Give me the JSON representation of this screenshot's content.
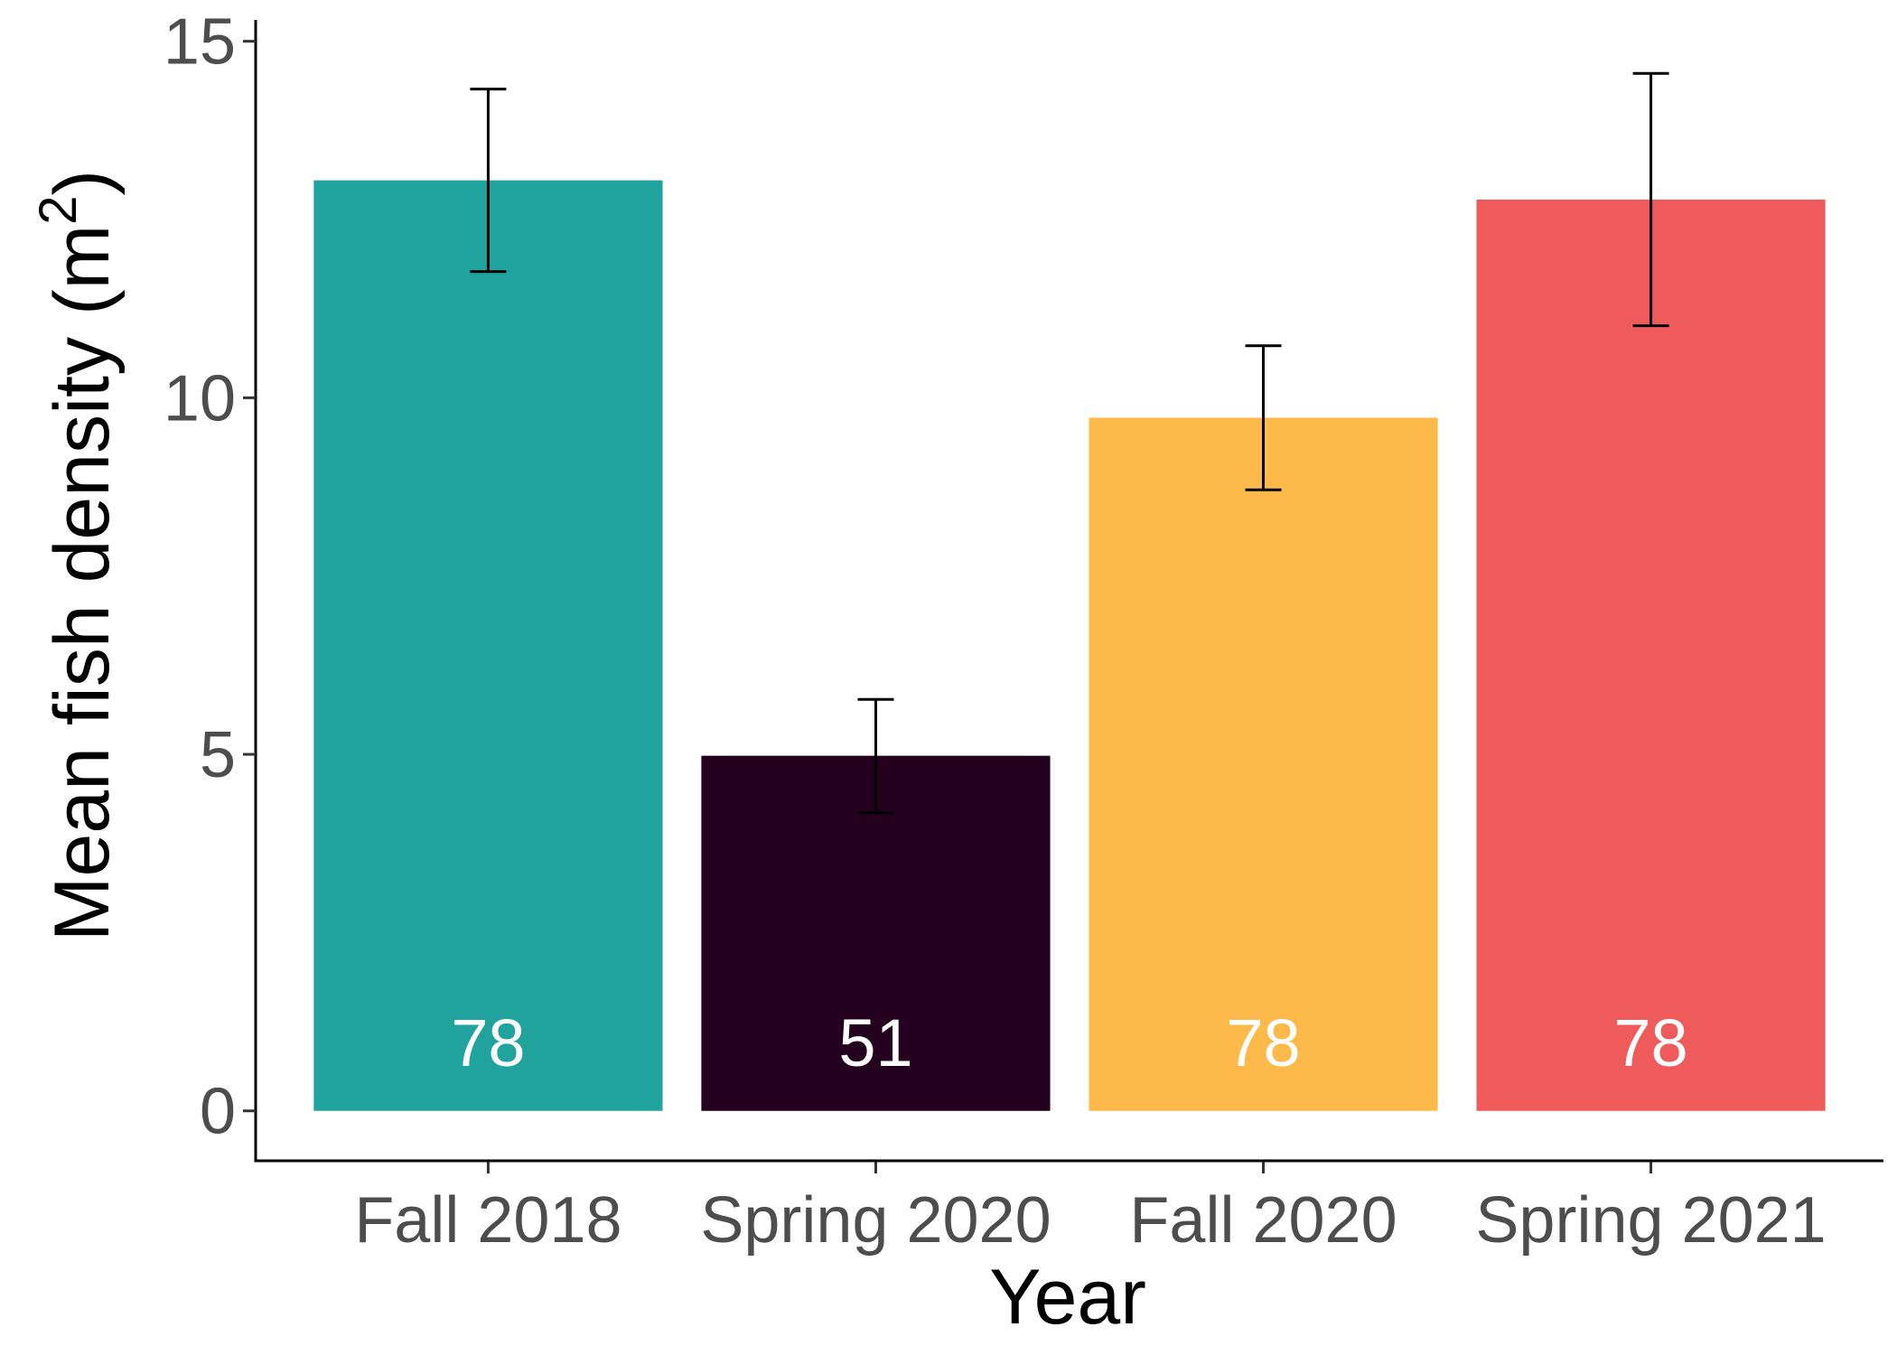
{
  "chart_data": {
    "type": "bar",
    "categories": [
      "Fall 2018",
      "Spring 2020",
      "Fall 2020",
      "Spring 2021"
    ],
    "values": [
      13.05,
      4.98,
      9.72,
      12.78
    ],
    "error_upper": [
      14.33,
      5.77,
      10.73,
      14.55
    ],
    "error_lower": [
      11.77,
      4.18,
      8.71,
      11.01
    ],
    "bar_labels": [
      "78",
      "51",
      "78",
      "78"
    ],
    "colors": [
      "#21a39d",
      "#24001e",
      "#fdb94a",
      "#ef5b5b"
    ],
    "xlabel": "Year",
    "ylabel": {
      "main": "Mean fish density ",
      "open": "(",
      "base": "m",
      "exponent": "2",
      "close": ")"
    },
    "ylim": [
      -0.7,
      15.3
    ],
    "yticks": [
      0,
      5,
      10,
      15
    ],
    "grid": false,
    "legend": "none"
  }
}
